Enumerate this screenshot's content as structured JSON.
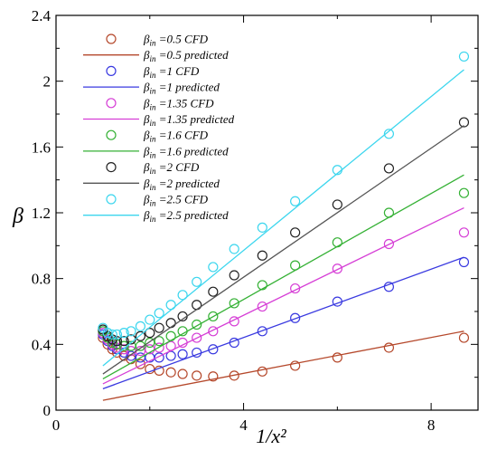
{
  "chart_data": {
    "type": "scatter",
    "xlabel": "1/x²",
    "ylabel": "β",
    "xlim": [
      0,
      9
    ],
    "ylim": [
      0,
      2.4
    ],
    "xticks": [
      "0",
      "4",
      "8"
    ],
    "xtick_values": [
      0,
      4,
      8
    ],
    "yticks": [
      "0",
      "0.4",
      "0.8",
      "1.2",
      "1.6",
      "2",
      "2.4"
    ],
    "ytick_values": [
      0,
      0.4,
      0.8,
      1.2,
      1.6,
      2.0,
      2.4
    ],
    "grid": false,
    "legend_position": "top-left",
    "series": [
      {
        "name": "βin =0.5 CFD",
        "legend_main": "β",
        "legend_sub": "in",
        "legend_rest": " =0.5 CFD",
        "kind": "markers",
        "color": "#b5482b",
        "x": [
          1.0,
          1.1,
          1.2,
          1.3,
          1.45,
          1.6,
          1.8,
          2.0,
          2.2,
          2.45,
          2.7,
          3.0,
          3.35,
          3.8,
          4.4,
          5.1,
          6.0,
          7.1,
          8.7
        ],
        "y": [
          0.44,
          0.4,
          0.37,
          0.35,
          0.33,
          0.31,
          0.28,
          0.25,
          0.24,
          0.23,
          0.22,
          0.21,
          0.205,
          0.21,
          0.235,
          0.27,
          0.32,
          0.38,
          0.44
        ]
      },
      {
        "name": "βin =0.5 predicted",
        "legend_main": "β",
        "legend_sub": "in",
        "legend_rest": " =0.5 predicted",
        "kind": "line",
        "color": "#b5482b",
        "x": [
          1.0,
          8.7
        ],
        "y": [
          0.06,
          0.48
        ]
      },
      {
        "name": "βin =1 CFD",
        "legend_main": "β",
        "legend_sub": "in",
        "legend_rest": " =1 CFD",
        "kind": "markers",
        "color": "#3a3ae0",
        "x": [
          1.0,
          1.1,
          1.2,
          1.3,
          1.45,
          1.6,
          1.8,
          2.0,
          2.2,
          2.45,
          2.7,
          3.0,
          3.35,
          3.8,
          4.4,
          5.1,
          6.0,
          7.1,
          8.7
        ],
        "y": [
          0.46,
          0.42,
          0.39,
          0.37,
          0.35,
          0.33,
          0.32,
          0.32,
          0.32,
          0.33,
          0.34,
          0.35,
          0.37,
          0.41,
          0.48,
          0.56,
          0.66,
          0.75,
          0.9
        ]
      },
      {
        "name": "βin =1 predicted",
        "legend_main": "β",
        "legend_sub": "in",
        "legend_rest": " =1 predicted",
        "kind": "line",
        "color": "#3a3ae0",
        "x": [
          1.0,
          8.7
        ],
        "y": [
          0.13,
          0.93
        ]
      },
      {
        "name": "βin =1.35 CFD",
        "legend_main": "β",
        "legend_sub": "in",
        "legend_rest": " =1.35 CFD",
        "kind": "markers",
        "color": "#d63fd6",
        "x": [
          1.0,
          1.1,
          1.2,
          1.3,
          1.45,
          1.6,
          1.8,
          2.0,
          2.2,
          2.45,
          2.7,
          3.0,
          3.35,
          3.8,
          4.4,
          5.1,
          6.0,
          7.1,
          8.7
        ],
        "y": [
          0.47,
          0.43,
          0.4,
          0.38,
          0.37,
          0.36,
          0.36,
          0.37,
          0.38,
          0.39,
          0.41,
          0.44,
          0.48,
          0.54,
          0.63,
          0.74,
          0.86,
          1.01,
          1.08
        ]
      },
      {
        "name": "βin =1.35 predicted",
        "legend_main": "β",
        "legend_sub": "in",
        "legend_rest": " =1.35 predicted",
        "kind": "line",
        "color": "#d63fd6",
        "x": [
          1.0,
          8.7
        ],
        "y": [
          0.16,
          1.23
        ]
      },
      {
        "name": "βin =1.6 CFD",
        "legend_main": "β",
        "legend_sub": "in",
        "legend_rest": " =1.6 CFD",
        "kind": "markers",
        "color": "#35b135",
        "x": [
          1.0,
          1.1,
          1.2,
          1.3,
          1.45,
          1.6,
          1.8,
          2.0,
          2.2,
          2.45,
          2.7,
          3.0,
          3.35,
          3.8,
          4.4,
          5.1,
          6.0,
          7.1,
          8.7
        ],
        "y": [
          0.48,
          0.44,
          0.41,
          0.4,
          0.39,
          0.39,
          0.39,
          0.41,
          0.42,
          0.45,
          0.48,
          0.52,
          0.57,
          0.65,
          0.76,
          0.88,
          1.02,
          1.2,
          1.32
        ]
      },
      {
        "name": "βin =1.6 predicted",
        "legend_main": "β",
        "legend_sub": "in",
        "legend_rest": " =1.6 predicted",
        "kind": "line",
        "color": "#35b135",
        "x": [
          1.0,
          8.7
        ],
        "y": [
          0.19,
          1.43
        ]
      },
      {
        "name": "βin =2 CFD",
        "legend_main": "β",
        "legend_sub": "in",
        "legend_rest": " =2 CFD",
        "kind": "markers",
        "color": "#222222",
        "x": [
          1.0,
          1.1,
          1.2,
          1.3,
          1.45,
          1.6,
          1.8,
          2.0,
          2.2,
          2.45,
          2.7,
          3.0,
          3.35,
          3.8,
          4.4,
          5.1,
          6.0,
          7.1,
          8.7
        ],
        "y": [
          0.49,
          0.45,
          0.43,
          0.42,
          0.42,
          0.43,
          0.45,
          0.47,
          0.5,
          0.53,
          0.57,
          0.64,
          0.72,
          0.82,
          0.94,
          1.08,
          1.25,
          1.47,
          1.75
        ]
      },
      {
        "name": "βin =2 predicted",
        "legend_main": "β",
        "legend_sub": "in",
        "legend_rest": " =2 predicted",
        "kind": "line",
        "color": "#555555",
        "x": [
          1.0,
          8.7
        ],
        "y": [
          0.22,
          1.73
        ]
      },
      {
        "name": "βin =2.5 CFD",
        "legend_main": "β",
        "legend_sub": "in",
        "legend_rest": " =2.5 CFD",
        "kind": "markers",
        "color": "#3cd6ee",
        "x": [
          1.0,
          1.1,
          1.2,
          1.3,
          1.45,
          1.6,
          1.8,
          2.0,
          2.2,
          2.45,
          2.7,
          3.0,
          3.35,
          3.8,
          4.4,
          5.1,
          6.0,
          7.1,
          8.7
        ],
        "y": [
          0.5,
          0.47,
          0.46,
          0.46,
          0.47,
          0.48,
          0.51,
          0.55,
          0.59,
          0.64,
          0.7,
          0.78,
          0.87,
          0.98,
          1.11,
          1.27,
          1.46,
          1.68,
          2.15
        ]
      },
      {
        "name": "βin =2.5 predicted",
        "legend_main": "β",
        "legend_sub": "in",
        "legend_rest": " =2.5 predicted",
        "kind": "line",
        "color": "#3cd6ee",
        "x": [
          1.0,
          8.7
        ],
        "y": [
          0.27,
          2.07
        ]
      }
    ]
  }
}
